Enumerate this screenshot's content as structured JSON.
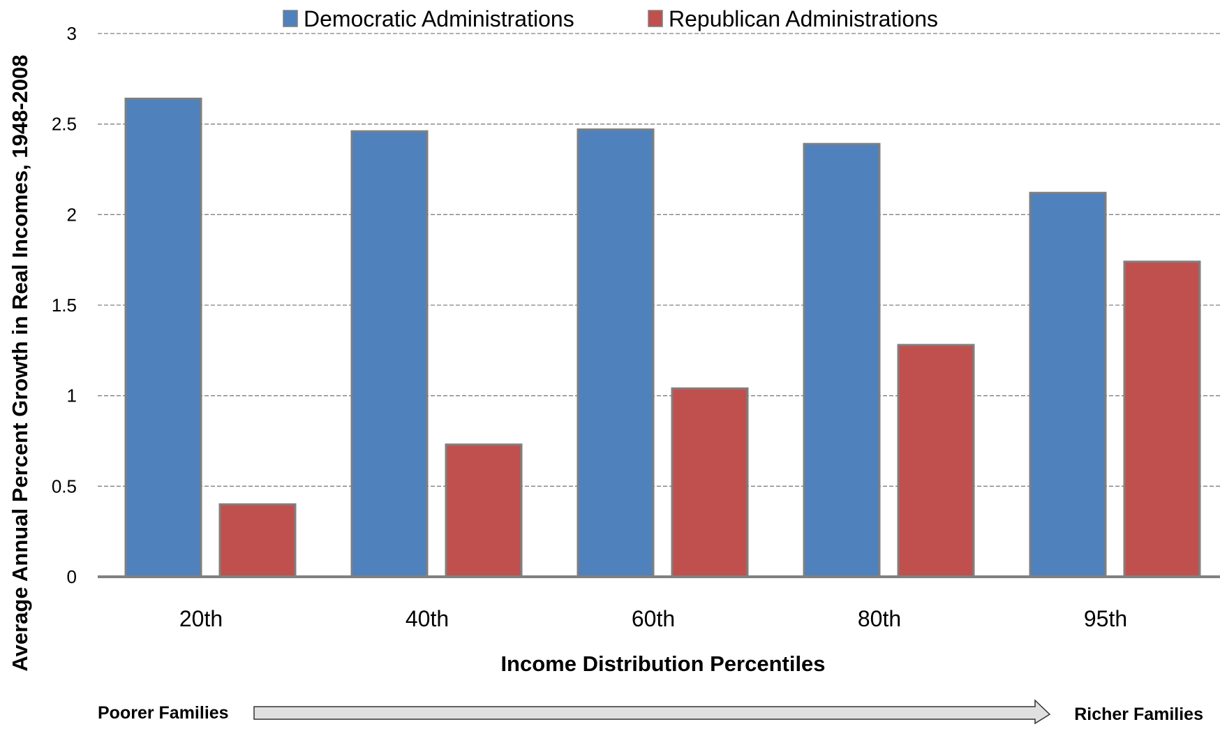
{
  "chart_data": {
    "type": "bar",
    "title": "",
    "xlabel": "Income Distribution Percentiles",
    "ylabel": "Average Annual Percent Growth in Real Incomes, 1948-2008",
    "categories": [
      "20th",
      "40th",
      "60th",
      "80th",
      "95th"
    ],
    "series": [
      {
        "name": "Democratic Administrations",
        "color": "#4f81bd",
        "values": [
          2.64,
          2.46,
          2.47,
          2.39,
          2.12
        ]
      },
      {
        "name": "Republican Administrations",
        "color": "#c0504d",
        "values": [
          0.4,
          0.73,
          1.04,
          1.28,
          1.74
        ]
      }
    ],
    "ylim": [
      0,
      3
    ],
    "yticks": [
      "0",
      "0.5",
      "1",
      "1.5",
      "2",
      "2.5",
      "3"
    ],
    "grid": true,
    "legend": "top"
  },
  "footer": {
    "left_label": "Poorer Families",
    "right_label": "Richer Families",
    "arrow_fill": "#e0e0e0"
  }
}
